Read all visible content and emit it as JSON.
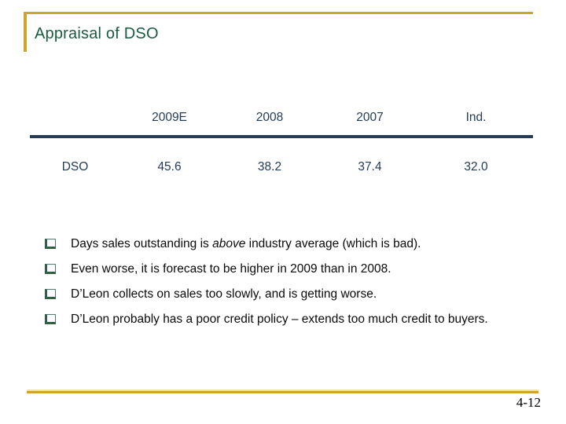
{
  "slide": {
    "title": "Appraisal of DSO",
    "page_number": "4-12",
    "colors": {
      "accent_gold": "#c9a72b",
      "accent_gold_light": "#ece5ab",
      "title_green": "#1a5c42",
      "table_navy": "#243c55",
      "bullet_green": "#2f5f45",
      "body_text": "#0a0a0a"
    },
    "table": {
      "row_label": "DSO",
      "columns": [
        "2009E",
        "2008",
        "2007",
        "Ind."
      ],
      "values": [
        "45.6",
        "38.2",
        "37.4",
        "32.0"
      ]
    },
    "bullets": [
      {
        "pre": "Days sales outstanding is ",
        "em": "above",
        "post": " industry average (which is bad)."
      },
      {
        "pre": "Even worse, it is forecast to be higher in 2009 than in 2008.",
        "em": "",
        "post": ""
      },
      {
        "pre": "D’Leon collects on sales too slowly, and is getting worse.",
        "em": "",
        "post": ""
      },
      {
        "pre": "D’Leon probably has a poor credit policy – extends too much credit to buyers.",
        "em": "",
        "post": ""
      }
    ]
  }
}
